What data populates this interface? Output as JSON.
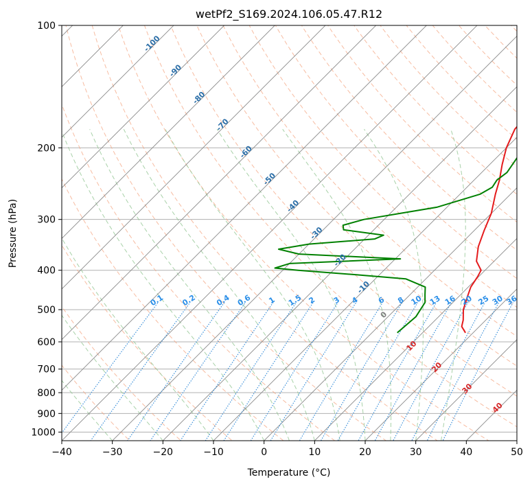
{
  "chart_data": {
    "type": "line",
    "title": "wetPf2_S169.2024.106.05.47.R12",
    "xlabel": "Temperature (°C)",
    "ylabel": "Pressure (hPa)",
    "xlim": [
      -40,
      50
    ],
    "ylim": [
      1050,
      100
    ],
    "y_scale": "log",
    "skew": "skew-T log-P",
    "grid": true,
    "x_ticks": [
      -40,
      -30,
      -20,
      -10,
      0,
      10,
      20,
      30,
      40,
      50
    ],
    "x_tick_labels": [
      "−40",
      "−30",
      "−20",
      "−10",
      "0",
      "10",
      "20",
      "30",
      "40",
      "50"
    ],
    "y_ticks": [
      1000,
      900,
      800,
      700,
      600,
      500,
      400,
      300,
      200,
      100
    ],
    "y_tick_labels": [
      "1000",
      "900",
      "800",
      "700",
      "600",
      "500",
      "400",
      "300",
      "200",
      "100"
    ],
    "series": [
      {
        "role": "temperature",
        "color": "#e41a1c",
        "points": [
          [
            570,
            18.5
          ],
          [
            550,
            16.5
          ],
          [
            530,
            15.5
          ],
          [
            500,
            13.5
          ],
          [
            470,
            12.0
          ],
          [
            440,
            10.5
          ],
          [
            415,
            9.8
          ],
          [
            400,
            9.2
          ],
          [
            380,
            6.5
          ],
          [
            350,
            4.0
          ],
          [
            320,
            2.0
          ],
          [
            290,
            0.0
          ],
          [
            260,
            -3.0
          ],
          [
            240,
            -5.0
          ],
          [
            220,
            -7.5
          ],
          [
            200,
            -10.0
          ],
          [
            180,
            -12.0
          ],
          [
            160,
            -12.5
          ],
          [
            140,
            -15.0
          ],
          [
            125,
            -19.0
          ],
          [
            115,
            -22.0
          ],
          [
            105,
            -24.0
          ],
          [
            100,
            -25.0
          ]
        ]
      },
      {
        "role": "dewpoint",
        "color": "#008000",
        "points": [
          [
            570,
            5.0
          ],
          [
            550,
            5.2
          ],
          [
            520,
            5.5
          ],
          [
            500,
            5.0
          ],
          [
            480,
            4.5
          ],
          [
            460,
            3.0
          ],
          [
            440,
            1.5
          ],
          [
            420,
            -4.0
          ],
          [
            410,
            -15.0
          ],
          [
            400,
            -27.0
          ],
          [
            395,
            -32.0
          ],
          [
            385,
            -30.0
          ],
          [
            375,
            -9.0
          ],
          [
            365,
            -30.0
          ],
          [
            355,
            -35.0
          ],
          [
            345,
            -30.0
          ],
          [
            335,
            -18.0
          ],
          [
            328,
            -17.0
          ],
          [
            318,
            -26.0
          ],
          [
            310,
            -27.0
          ],
          [
            300,
            -24.0
          ],
          [
            280,
            -12.0
          ],
          [
            260,
            -6.0
          ],
          [
            250,
            -5.0
          ],
          [
            240,
            -5.5
          ],
          [
            230,
            -5.0
          ],
          [
            210,
            -6.0
          ],
          [
            195,
            -5.0
          ],
          [
            185,
            -7.0
          ],
          [
            160,
            -8.0
          ],
          [
            140,
            -8.5
          ],
          [
            125,
            -8.5
          ],
          [
            110,
            -9.0
          ],
          [
            104,
            -9.0
          ],
          [
            100,
            -9.5
          ]
        ]
      }
    ],
    "isotherms_deg_c": [
      -100,
      -90,
      -80,
      -70,
      -60,
      -50,
      -40,
      -30,
      -20,
      -10,
      0,
      10,
      20,
      30,
      40,
      50
    ],
    "isotherm_labels": [
      "-100",
      "-90",
      "-80",
      "-70",
      "-60",
      "-50",
      "-40",
      "-30",
      "-20",
      "-10"
    ],
    "mixing_ratio_g_per_kg": [
      0.1,
      0.2,
      0.4,
      0.6,
      1,
      1.5,
      2,
      3,
      4,
      6,
      8,
      10,
      13,
      16,
      20,
      25,
      30,
      36
    ],
    "mixing_ratio_labels": [
      "0.1",
      "0.2",
      "0.4",
      "0.6",
      "1",
      "1.5",
      "2",
      "3",
      "4",
      "6",
      "8",
      "10",
      "13",
      "16",
      "20",
      "25",
      "30",
      "36"
    ],
    "dry_adiabat_theta_c": [
      -30,
      -20,
      -10,
      0,
      10,
      20,
      30,
      40,
      50,
      60,
      70,
      80,
      90,
      100,
      110,
      120,
      130,
      140,
      150,
      160,
      170,
      180,
      190,
      200
    ],
    "moist_adiabat_start_c": [
      -30,
      -20,
      -10,
      0,
      5,
      10,
      15,
      20,
      25,
      30,
      35
    ],
    "isotherm_color": "#8a8a8a",
    "dry_adiabat_color": "#f4a582",
    "moist_adiabat_color": "#92c592",
    "mixing_ratio_color": "#3a8fd9",
    "label_blue": "#2c6fa8",
    "label_bright_blue": "#2b8fe8",
    "label_red": "#d62728",
    "label_gray": "#7f7f7f",
    "wetbulb_labels": [
      {
        "text": "0",
        "p": 520,
        "x": 24,
        "color": "#7f7f7f"
      },
      {
        "text": "10",
        "p": 620,
        "x": 29.5,
        "color": "#d62728"
      },
      {
        "text": "20",
        "p": 700,
        "x": 34.5,
        "color": "#d62728"
      },
      {
        "text": "30",
        "p": 790,
        "x": 40.5,
        "color": "#d62728"
      },
      {
        "text": "40",
        "p": 880,
        "x": 46.5,
        "color": "#d62728"
      }
    ]
  }
}
